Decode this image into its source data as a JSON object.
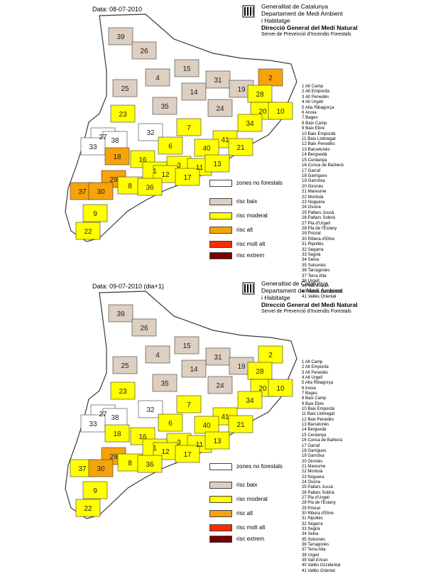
{
  "colors": {
    "no_forest": "#ffffff",
    "baix": "#ddcfc1",
    "moderat": "#ffff00",
    "alt": "#f7a30a",
    "molt_alt": "#ff2a00",
    "extrem": "#7a0000",
    "border": "#3a3a3a"
  },
  "panels": [
    {
      "date": "Data: 08-07-2010",
      "org": [
        "Generalitat de Catalunya",
        "Departament de Medi Ambient",
        "i Habitatge"
      ],
      "directorate": "Direcció General del Medi Natural",
      "service": "Servei de Prevenció d'Incendis Forestals",
      "legend": [
        {
          "key": "no_forest",
          "label": "zones no forestals"
        },
        {
          "key": "baix",
          "label": "risc baix"
        },
        {
          "key": "moderat",
          "label": "risc moderat"
        },
        {
          "key": "alt",
          "label": "risc alt"
        },
        {
          "key": "molt_alt",
          "label": "risc molt alt"
        },
        {
          "key": "extrem",
          "label": "risc extrem"
        }
      ]
    },
    {
      "date": "Data: 09-07-2010 (dia+1)",
      "org": [
        "Generalitat de Catalunya",
        "Departament de Medi Ambient",
        "i Habitatge"
      ],
      "directorate": "Direcció General del Medi Natural",
      "service": "Servei de Prevenció d'Incendis Forestals",
      "legend": [
        {
          "key": "no_forest",
          "label": "zones no forestals"
        },
        {
          "key": "baix",
          "label": "risc baix"
        },
        {
          "key": "moderat",
          "label": "risc moderat"
        },
        {
          "key": "alt",
          "label": "risc alt"
        },
        {
          "key": "molt_alt",
          "label": "risc molt alt"
        },
        {
          "key": "extrem",
          "label": "risc extrem"
        }
      ]
    }
  ],
  "comarques": [
    "1 Alt Camp",
    "2 Alt Empordà",
    "3 Alt Penedès",
    "4 Alt Urgell",
    "5 Alta Ribagorça",
    "6 Anoia",
    "7 Bages",
    "8 Baix Camp",
    "9 Baix Ebre",
    "10 Baix Empordà",
    "11 Baix Llobregat",
    "12 Baix Penedès",
    "13 Barcelonès",
    "14 Berguedà",
    "15 Cerdanya",
    "16 Conca de Barberà",
    "17 Garraf",
    "18 Garrigues",
    "19 Garrotxa",
    "20 Gironès",
    "21 Maresme",
    "22 Montsià",
    "23 Noguera",
    "24 Osona",
    "25 Pallars Jussà",
    "26 Pallars Sobirà",
    "27 Pla d'Urgell",
    "28 Pla de l'Estany",
    "29 Priorat",
    "30 Ribera d'Ebre",
    "31 Ripollès",
    "32 Segarra",
    "33 Segrià",
    "34 Selva",
    "35 Solsonès",
    "36 Tarragonès",
    "37 Terra Alta",
    "38 Urgell",
    "39 Vall d'Aran",
    "40 Vallès Occidental",
    "41 Vallès Oriental"
  ],
  "map_labels": [
    {
      "n": "39"
    },
    {
      "n": "26"
    },
    {
      "n": "15"
    },
    {
      "n": "4"
    },
    {
      "n": "31"
    },
    {
      "n": "2"
    },
    {
      "n": "25"
    },
    {
      "n": "19"
    },
    {
      "n": "28"
    },
    {
      "n": "14"
    },
    {
      "n": "35"
    },
    {
      "n": "24"
    },
    {
      "n": "20"
    },
    {
      "n": "10"
    },
    {
      "n": "23"
    },
    {
      "n": "34"
    },
    {
      "n": "7"
    },
    {
      "n": "27"
    },
    {
      "n": "38"
    },
    {
      "n": "32"
    },
    {
      "n": "6"
    },
    {
      "n": "41"
    },
    {
      "n": "40"
    },
    {
      "n": "21"
    },
    {
      "n": "33"
    },
    {
      "n": "18"
    },
    {
      "n": "16"
    },
    {
      "n": "3"
    },
    {
      "n": "11"
    },
    {
      "n": "13"
    },
    {
      "n": "1"
    },
    {
      "n": "12"
    },
    {
      "n": "17"
    },
    {
      "n": "29"
    },
    {
      "n": "37"
    },
    {
      "n": "30"
    },
    {
      "n": "8"
    },
    {
      "n": "36"
    },
    {
      "n": "9"
    },
    {
      "n": "22"
    }
  ],
  "risk_levels": {
    "day1": {
      "39": "baix",
      "26": "baix",
      "15": "baix",
      "4": "baix",
      "31": "baix",
      "2": "alt",
      "25": "baix",
      "19": "baix",
      "28": "moderat",
      "14": "baix",
      "35": "baix",
      "24": "baix",
      "20": "moderat",
      "10": "moderat",
      "23": "moderat",
      "34": "moderat",
      "7": "moderat",
      "27": "no_forest",
      "38": "no_forest",
      "32": "no_forest",
      "6": "moderat",
      "41": "moderat",
      "40": "moderat",
      "21": "moderat",
      "33": "no_forest",
      "18": "alt",
      "16": "moderat",
      "3": "moderat",
      "11": "moderat",
      "13": "moderat",
      "1": "moderat",
      "12": "moderat",
      "17": "moderat",
      "29": "alt",
      "37": "alt",
      "30": "alt",
      "8": "moderat",
      "36": "moderat",
      "9": "moderat",
      "22": "moderat"
    },
    "day2": {
      "39": "baix",
      "26": "baix",
      "15": "baix",
      "4": "baix",
      "31": "baix",
      "2": "moderat",
      "25": "baix",
      "19": "baix",
      "28": "moderat",
      "14": "baix",
      "35": "baix",
      "24": "baix",
      "20": "moderat",
      "10": "moderat",
      "23": "moderat",
      "34": "moderat",
      "7": "moderat",
      "27": "no_forest",
      "38": "no_forest",
      "32": "no_forest",
      "6": "moderat",
      "41": "moderat",
      "40": "moderat",
      "21": "moderat",
      "33": "no_forest",
      "18": "moderat",
      "16": "moderat",
      "3": "moderat",
      "11": "moderat",
      "13": "moderat",
      "1": "moderat",
      "12": "moderat",
      "17": "moderat",
      "29": "alt",
      "37": "moderat",
      "30": "alt",
      "8": "moderat",
      "36": "moderat",
      "9": "moderat",
      "22": "moderat"
    }
  }
}
